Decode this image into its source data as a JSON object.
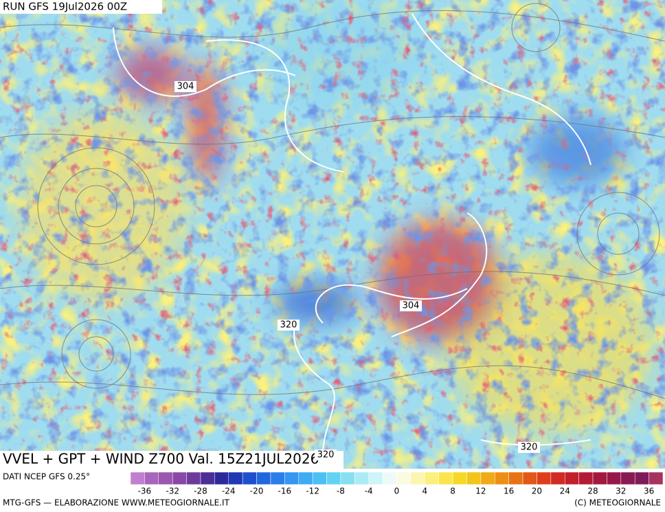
{
  "header": {
    "run": "RUN GFS 19Jul2026 00Z"
  },
  "map": {
    "title": "VVEL + GPT + WIND Z700 Val. 15Z21JUL2026",
    "contour_labels": [
      "304",
      "304",
      "320",
      "320",
      "320"
    ]
  },
  "colorbar": {
    "source": "DATI NCEP GFS 0.25°",
    "colors": [
      "#c07fcf",
      "#a865bd",
      "#9a56b0",
      "#8a48a6",
      "#6d3b9c",
      "#4b2f97",
      "#2c2a9b",
      "#1f38b3",
      "#1f4fcc",
      "#2266dd",
      "#2a7ee8",
      "#3595ef",
      "#3fabf3",
      "#4cc0f4",
      "#63d2f2",
      "#86e0f2",
      "#aaebf4",
      "#cdf4f6",
      "#eefaf8",
      "#fbfbe2",
      "#fbf6b0",
      "#fbef7e",
      "#f9e64e",
      "#f6d928",
      "#f3c41c",
      "#f0aa18",
      "#ec8f16",
      "#e87315",
      "#e35816",
      "#dc3f1b",
      "#d12c22",
      "#c2202b",
      "#b31a35",
      "#a4173f",
      "#961848",
      "#8a1a52",
      "#7e1c5a",
      "#a8325f"
    ],
    "ticks": [
      -36,
      -32,
      -28,
      -24,
      -20,
      -16,
      -12,
      -8,
      -4,
      0,
      4,
      8,
      12,
      16,
      20,
      24,
      28,
      32,
      36
    ]
  },
  "footer": {
    "credit": "MTG-GFS — ELABORAZIONE WWW.METEOGIORNALE.IT",
    "copyright": "(C) METEOGIORNALE"
  }
}
